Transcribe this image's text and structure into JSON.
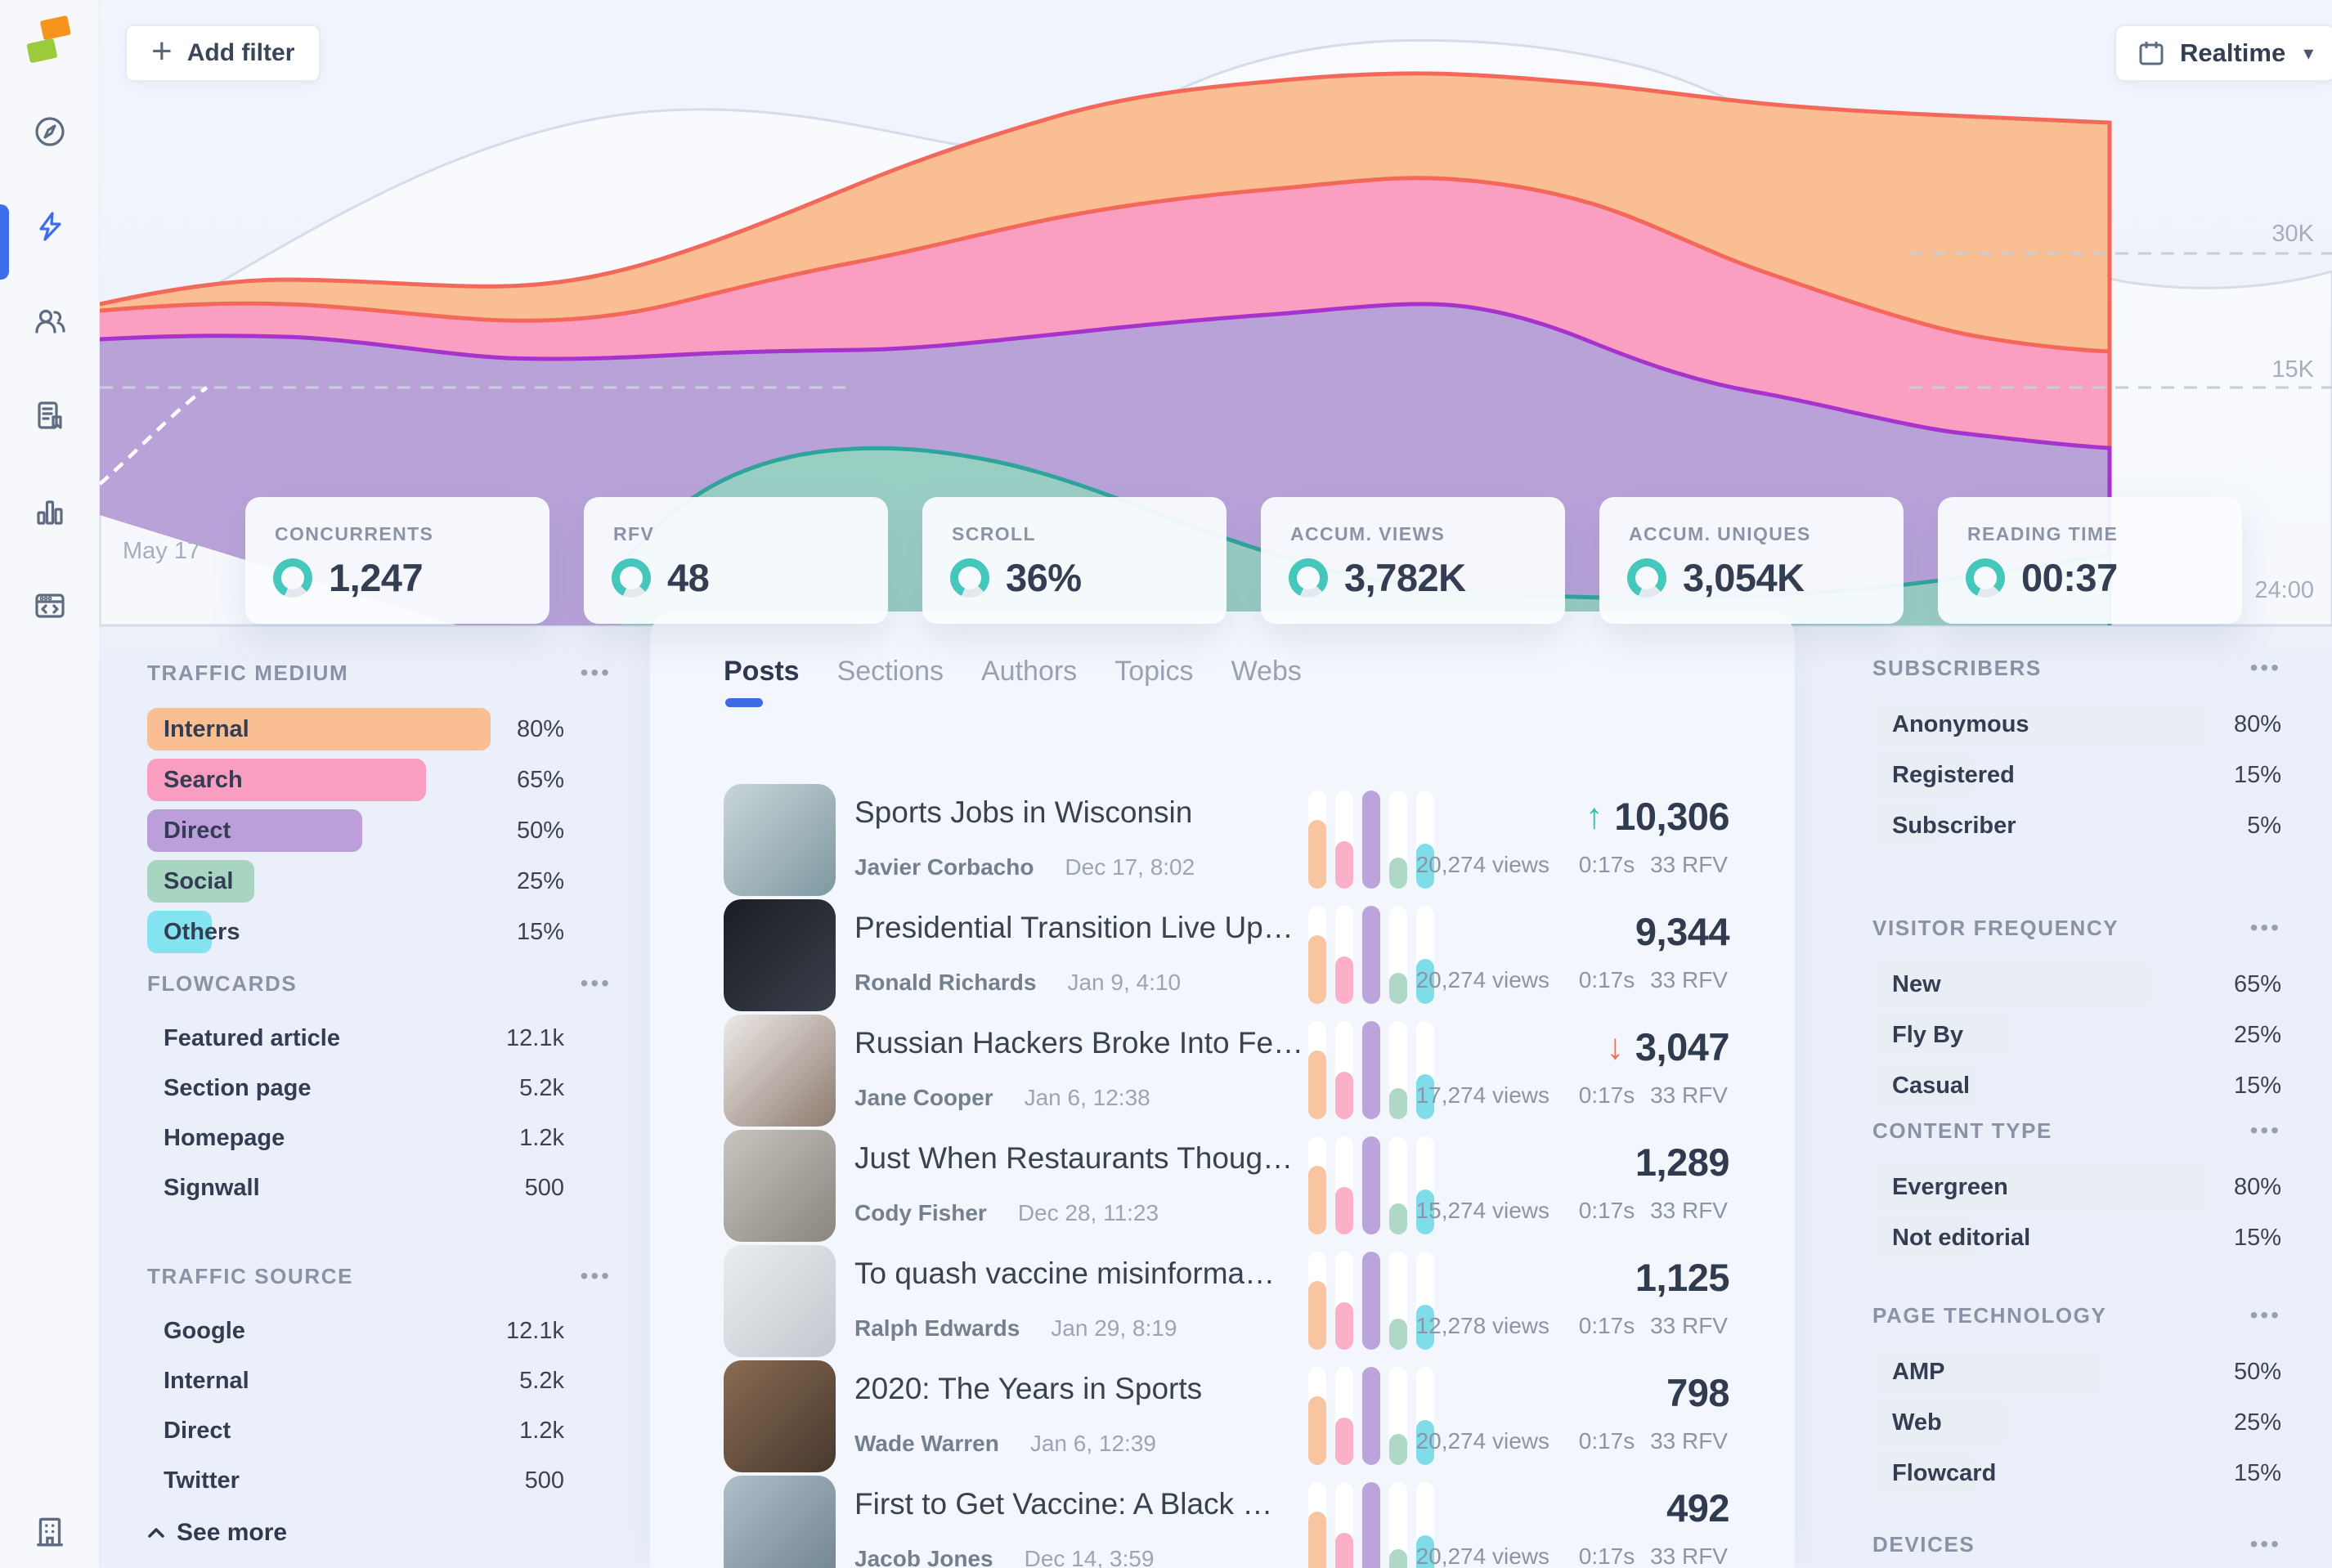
{
  "app": {
    "accent": "#3E6BE4",
    "ring_teal": "#45C8BB",
    "up_color": "#35BFAE",
    "down_color": "#F2705C"
  },
  "icons": {
    "plus": "+",
    "caret_down": "▾",
    "menu": "•••",
    "up_arrow": "↑",
    "down_arrow": "↓"
  },
  "sidebar": {
    "items": [
      {
        "icon": "compass"
      },
      {
        "icon": "flash",
        "active": true
      },
      {
        "icon": "users"
      },
      {
        "icon": "pages"
      },
      {
        "icon": "chart"
      },
      {
        "icon": "code"
      }
    ],
    "footer_icon": "building"
  },
  "topbar": {
    "add_filter": "Add filter",
    "range": "Realtime"
  },
  "chart": {
    "type": "stacked-area",
    "y_ticks": [
      "30K",
      "15K"
    ],
    "x_start_label": "May 17",
    "x_end_label": "24:00",
    "band_colors": [
      "#F9BE92",
      "#FA9EC2",
      "#B8A2D8",
      "#99CEC3"
    ],
    "band_strokes": [
      "#F3685A",
      "#F3685A",
      "#A833CC",
      "#2FA49C"
    ]
  },
  "stats": [
    {
      "label": "CONCURRENTS",
      "value": "1,247"
    },
    {
      "label": "RFV",
      "value": "48"
    },
    {
      "label": "SCROLL",
      "value": "36%"
    },
    {
      "label": "ACCUM. VIEWS",
      "value": "3,782K"
    },
    {
      "label": "ACCUM. UNIQUES",
      "value": "3,054K"
    },
    {
      "label": "READING TIME",
      "value": "00:37"
    }
  ],
  "traffic_medium": {
    "title": "TRAFFIC MEDIUM",
    "items": [
      {
        "label": "Internal",
        "pct": "80%",
        "value": 80,
        "color": "#F9BE92"
      },
      {
        "label": "Search",
        "pct": "65%",
        "value": 65,
        "color": "#FA9EC1"
      },
      {
        "label": "Direct",
        "pct": "50%",
        "value": 50,
        "color": "#BC9EDA"
      },
      {
        "label": "Social",
        "pct": "25%",
        "value": 25,
        "color": "#A8D5C2"
      },
      {
        "label": "Others",
        "pct": "15%",
        "value": 15,
        "color": "#83E3F0"
      }
    ]
  },
  "flowcards": {
    "title": "FLOWCARDS",
    "items": [
      {
        "label": "Featured article",
        "value": "12.1k"
      },
      {
        "label": "Section page",
        "value": "5.2k"
      },
      {
        "label": "Homepage",
        "value": "1.2k"
      },
      {
        "label": "Signwall",
        "value": "500"
      }
    ]
  },
  "traffic_source": {
    "title": "TRAFFIC SOURCE",
    "see_more": "See more",
    "items": [
      {
        "label": "Google",
        "value": "12.1k"
      },
      {
        "label": "Internal",
        "value": "5.2k"
      },
      {
        "label": "Direct",
        "value": "1.2k"
      },
      {
        "label": "Twitter",
        "value": "500"
      }
    ]
  },
  "tabs": [
    {
      "label": "Posts",
      "active": true
    },
    {
      "label": "Sections",
      "active": false
    },
    {
      "label": "Authors",
      "active": false
    },
    {
      "label": "Topics",
      "active": false
    },
    {
      "label": "Webs",
      "active": false
    }
  ],
  "spark": {
    "bar_colors": [
      "#F8C5A0",
      "#FBAFC9",
      "#BBA4DC",
      "#AFD8C6",
      "#7FDDEA"
    ],
    "bar_heights": [
      70,
      48,
      100,
      32,
      46
    ]
  },
  "posts": [
    {
      "title": "Sports Jobs in Wisconsin",
      "author": "Javier Corbacho",
      "date": "Dec 17, 8:02",
      "views": "20,274 views",
      "duration": "0:17s",
      "rfv": "33 RFV",
      "score": "10,306",
      "trend": "up",
      "thumb": [
        "#C9D6DA",
        "#7E98A0"
      ]
    },
    {
      "title": "Presidential Transition Live Up…",
      "author": "Ronald Richards",
      "date": "Jan 9, 4:10",
      "views": "20,274 views",
      "duration": "0:17s",
      "rfv": "33 RFV",
      "score": "9,344",
      "trend": "",
      "thumb": [
        "#1A1D24",
        "#3A3F4A"
      ]
    },
    {
      "title": "Russian Hackers Broke Into Fe…",
      "author": "Jane Cooper",
      "date": "Jan 6, 12:38",
      "views": "17,274 views",
      "duration": "0:17s",
      "rfv": "33 RFV",
      "score": "3,047",
      "trend": "down",
      "thumb": [
        "#EDEAE6",
        "#8D7B70"
      ]
    },
    {
      "title": "Just When Restaurants Thoug…",
      "author": "Cody Fisher",
      "date": "Dec 28, 11:23",
      "views": "15,274 views",
      "duration": "0:17s",
      "rfv": "33 RFV",
      "score": "1,289",
      "trend": "",
      "thumb": [
        "#C9C4BE",
        "#8A857E"
      ]
    },
    {
      "title": "To quash vaccine misinforma…",
      "author": "Ralph Edwards",
      "date": "Jan 29, 8:19",
      "views": "12,278 views",
      "duration": "0:17s",
      "rfv": "33 RFV",
      "score": "1,125",
      "trend": "",
      "thumb": [
        "#EAECEE",
        "#C3C8CE"
      ]
    },
    {
      "title": "2020: The Years in Sports",
      "author": "Wade Warren",
      "date": "Jan 6, 12:39",
      "views": "20,274 views",
      "duration": "0:17s",
      "rfv": "33 RFV",
      "score": "798",
      "trend": "",
      "thumb": [
        "#8A6B52",
        "#47392E"
      ]
    },
    {
      "title": "First to Get Vaccine: A Black …",
      "author": "Jacob Jones",
      "date": "Dec 14, 3:59",
      "views": "20,274 views",
      "duration": "0:17s",
      "rfv": "33 RFV",
      "score": "492",
      "trend": "",
      "thumb": [
        "#AFBFC8",
        "#6E8290"
      ]
    }
  ],
  "right_sections": [
    {
      "title": "SUBSCRIBERS",
      "items": [
        {
          "label": "Anonymous",
          "pct": "80%",
          "value": 80
        },
        {
          "label": "Registered",
          "pct": "15%",
          "value": 15
        },
        {
          "label": "Subscriber",
          "pct": "5%",
          "value": 5
        }
      ]
    },
    {
      "title": "VISITOR FREQUENCY",
      "items": [
        {
          "label": "New",
          "pct": "65%",
          "value": 65
        },
        {
          "label": "Fly By",
          "pct": "25%",
          "value": 25
        },
        {
          "label": "Casual",
          "pct": "15%",
          "value": 15
        }
      ]
    },
    {
      "title": "CONTENT TYPE",
      "items": [
        {
          "label": "Evergreen",
          "pct": "80%",
          "value": 80
        },
        {
          "label": "Not editorial",
          "pct": "15%",
          "value": 15
        }
      ]
    },
    {
      "title": "PAGE TECHNOLOGY",
      "items": [
        {
          "label": "AMP",
          "pct": "50%",
          "value": 50
        },
        {
          "label": "Web",
          "pct": "25%",
          "value": 25
        },
        {
          "label": "Flowcard",
          "pct": "15%",
          "value": 15
        }
      ]
    },
    {
      "title": "DEVICES",
      "items": []
    }
  ]
}
